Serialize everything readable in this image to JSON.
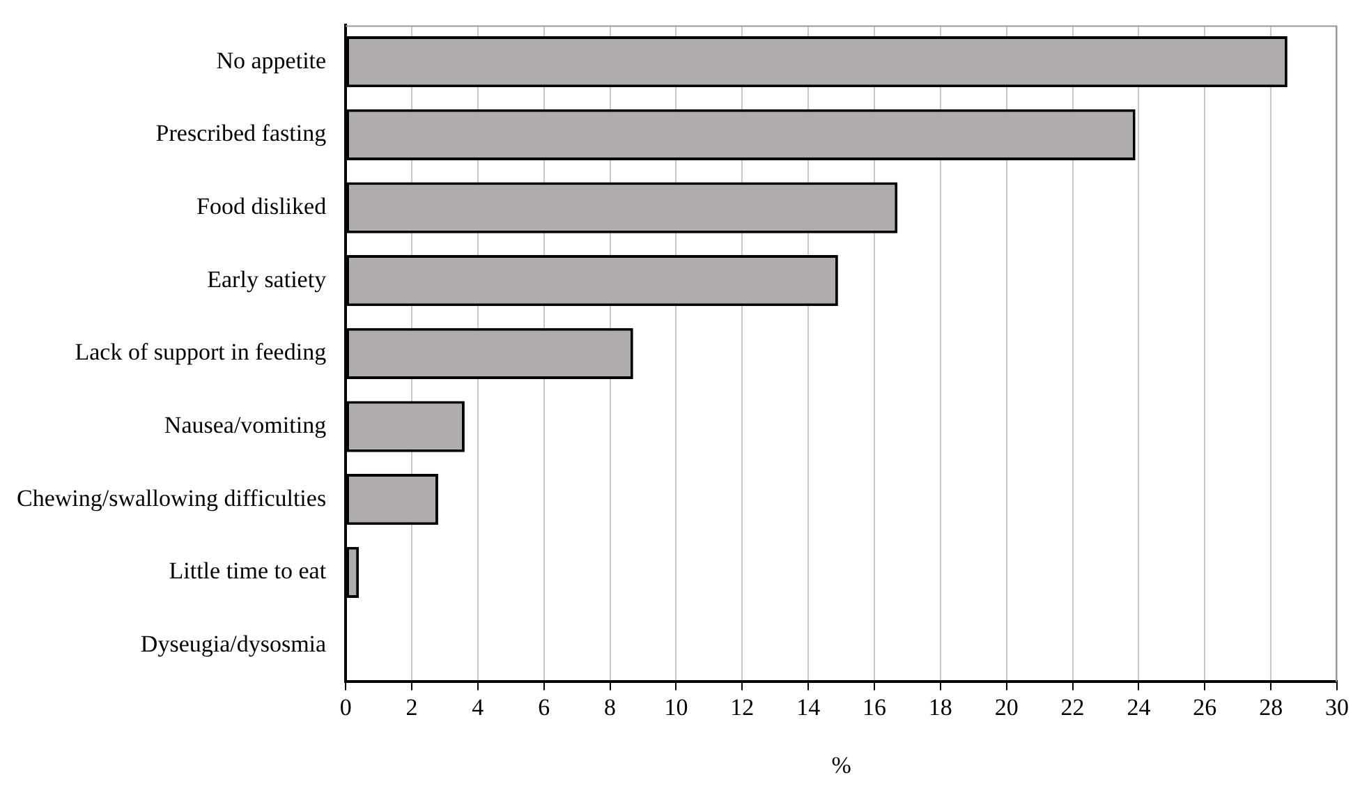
{
  "chart_data": {
    "type": "bar",
    "orientation": "horizontal",
    "categories": [
      "No appetite",
      "Prescribed fasting",
      "Food disliked",
      "Early satiety",
      "Lack of support in feeding",
      "Nausea/vomiting",
      "Chewing/swallowing difficulties",
      "Little time to eat",
      "Dyseugia/dysosmia"
    ],
    "values": [
      28.5,
      23.9,
      16.7,
      14.9,
      8.7,
      3.6,
      2.8,
      0.4,
      0
    ],
    "color": "#b0acab",
    "xlabel": "%",
    "xlim": [
      0,
      30
    ],
    "xticks": [
      0,
      2,
      4,
      6,
      8,
      10,
      12,
      14,
      16,
      18,
      20,
      22,
      24,
      26,
      28,
      30
    ],
    "grid": "x",
    "legend": false
  }
}
